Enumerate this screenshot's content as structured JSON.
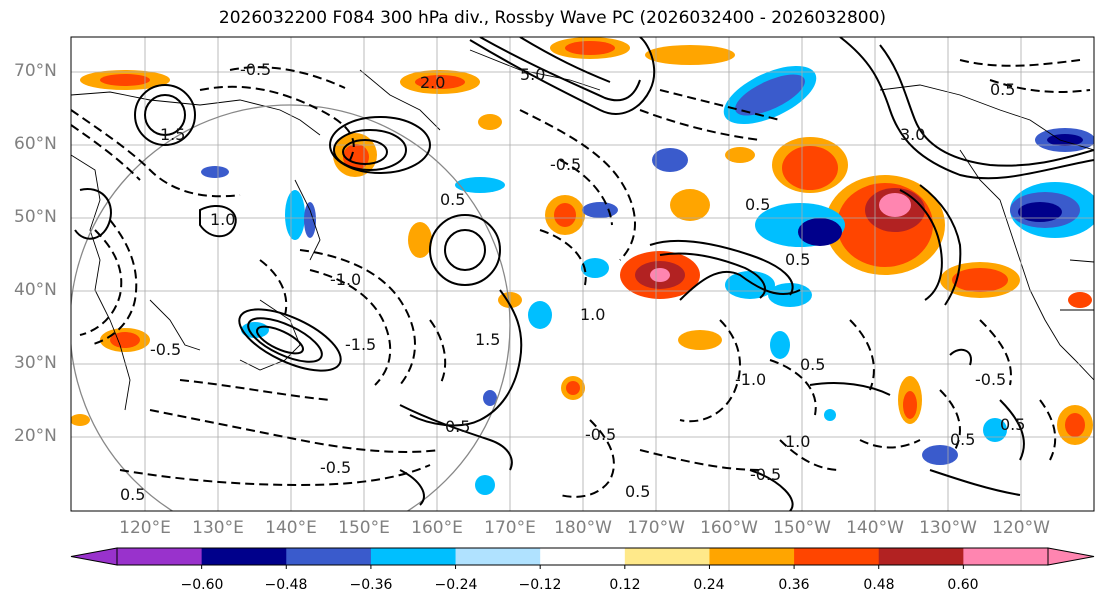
{
  "title": "2026032200 F084 300 hPa div., Rossby Wave PC (2026032400 - 2026032800)",
  "lat_labels": [
    "70°N",
    "60°N",
    "50°N",
    "40°N",
    "30°N",
    "20°N"
  ],
  "lon_labels": [
    "120°E",
    "130°E",
    "140°E",
    "150°E",
    "160°E",
    "170°E",
    "180°W",
    "170°W",
    "160°W",
    "150°W",
    "140°W",
    "130°W",
    "120°W"
  ],
  "colorbar": {
    "ticks": [
      "−0.60",
      "−0.48",
      "−0.36",
      "−0.24",
      "−0.12",
      "0.12",
      "0.24",
      "0.36",
      "0.48",
      "0.60"
    ],
    "colors": [
      "#9932cc",
      "#00008b",
      "#3a5bcc",
      "#00bfff",
      "#b0e2ff",
      "#ffffff",
      "#ffe98a",
      "#ffa500",
      "#ff4500",
      "#b22222",
      "#ff85b0"
    ]
  },
  "contour_labels": [
    "2.0",
    "5.0",
    "1.5",
    "-0.5",
    "0.5",
    "3.0",
    "1.0",
    "-1.0",
    "0.5",
    "-0.5",
    "0.5",
    "-1.5",
    "0.5",
    "-0.5",
    "1.5",
    "0.5",
    "1.0",
    "0.5",
    "-0.5",
    "0.5",
    "-1.0",
    "0.5",
    "-0.5",
    "1.0",
    "-0.5",
    "0.5",
    "0.5",
    "-0.5"
  ]
}
